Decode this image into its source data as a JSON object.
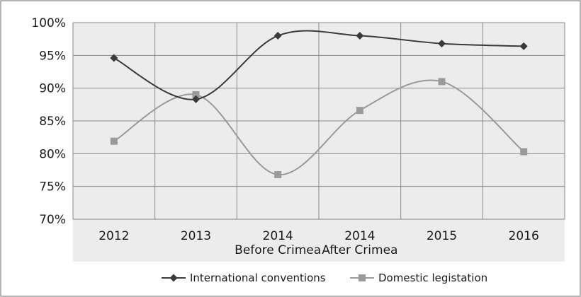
{
  "chart_data": {
    "type": "line",
    "categories": [
      [
        "2012"
      ],
      [
        "2013"
      ],
      [
        "2014",
        "Before Crimea"
      ],
      [
        "2014",
        "After Crimea"
      ],
      [
        "2015"
      ],
      [
        "2016"
      ]
    ],
    "ylim": [
      70,
      100
    ],
    "yticks": [
      70,
      75,
      80,
      85,
      90,
      95,
      100
    ],
    "ytick_labels": [
      "70%",
      "75%",
      "80%",
      "85%",
      "90%",
      "95%",
      "100%"
    ],
    "grid": true,
    "smoothed": true,
    "legend_position": "bottom",
    "series": [
      {
        "name": "International conventions",
        "values": [
          94.6,
          88.3,
          98.0,
          98.0,
          96.8,
          96.4
        ],
        "color": "#3a3a3a",
        "marker": "diamond"
      },
      {
        "name": "Domestic legistation",
        "values": [
          81.9,
          89.0,
          76.8,
          86.6,
          91.0,
          80.3
        ],
        "color": "#9a9a9a",
        "marker": "square"
      }
    ]
  }
}
